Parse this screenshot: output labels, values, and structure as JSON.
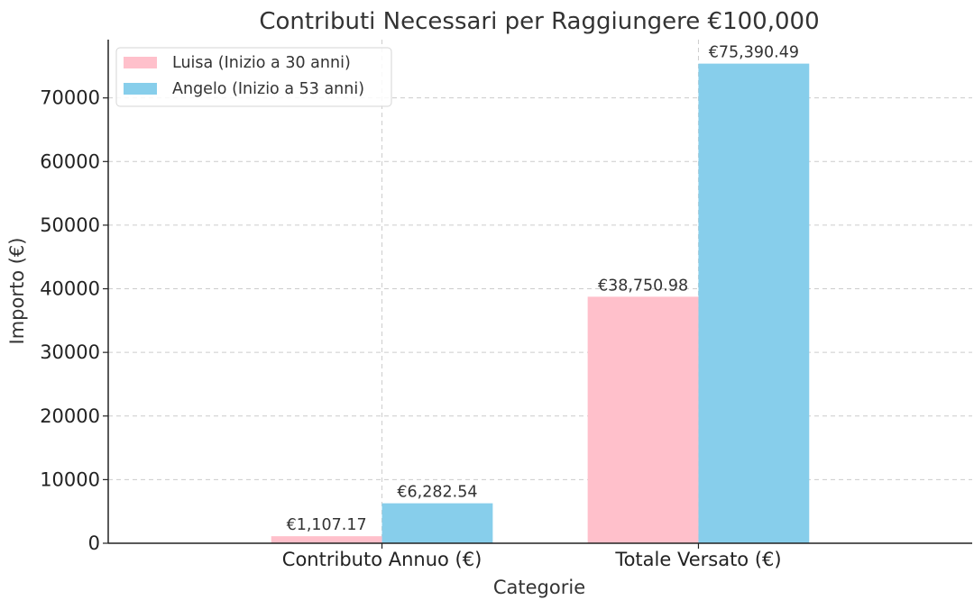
{
  "chart_data": {
    "type": "bar",
    "title": "Contributi Necessari per Raggiungere €100,000",
    "xlabel": "Categorie",
    "ylabel": "Importo (€)",
    "categories": [
      "Contributo Annuo (€)",
      "Totale Versato (€)"
    ],
    "series": [
      {
        "name": "Luisa (Inizio a 30 anni)",
        "color": "#FFC0CB",
        "values": [
          1107.17,
          38750.98
        ],
        "labels": [
          "€1,107.17",
          "€38,750.98"
        ]
      },
      {
        "name": "Angelo (Inizio a 53 anni)",
        "color": "#87CEEB",
        "values": [
          6282.54,
          75390.49
        ],
        "labels": [
          "€6,282.54",
          "€75,390.49"
        ]
      }
    ],
    "yticks": [
      0,
      10000,
      20000,
      30000,
      40000,
      50000,
      60000,
      70000
    ],
    "ylim": [
      0,
      79160
    ],
    "grid": true,
    "legend_position": "top-left"
  }
}
